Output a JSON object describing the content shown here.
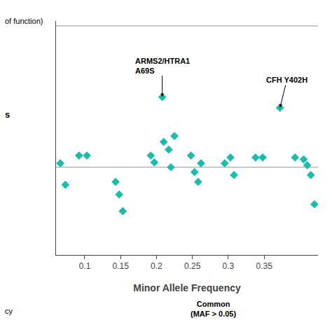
{
  "chart_data": {
    "type": "scatter",
    "xlabel": "Minor Allele Frequency",
    "x": [
      0.066,
      0.073,
      0.092,
      0.103,
      0.143,
      0.148,
      0.153,
      0.192,
      0.197,
      0.208,
      0.21,
      0.217,
      0.22,
      0.225,
      0.248,
      0.253,
      0.258,
      0.262,
      0.295,
      0.303,
      0.308,
      0.338,
      0.348,
      0.372,
      0.393,
      0.405,
      0.41,
      0.415,
      0.42
    ],
    "values": [
      0.04,
      -0.18,
      0.12,
      0.12,
      -0.15,
      -0.28,
      -0.45,
      0.12,
      0.05,
      0.72,
      0.26,
      0.18,
      0.0,
      0.32,
      0.12,
      -0.05,
      -0.15,
      0.04,
      0.04,
      0.1,
      -0.08,
      0.1,
      0.1,
      0.61,
      0.1,
      0.08,
      0.02,
      -0.08,
      -0.38
    ],
    "color": "#1ABCB0",
    "marker": "diamond",
    "xlim": [
      0.06,
      0.425
    ],
    "ylim": [
      -0.9,
      1.5
    ],
    "xticks": [
      0.1,
      0.15,
      0.2,
      0.25,
      0.3,
      0.35
    ],
    "tick_labels": "x",
    "grid": false,
    "hlines": [
      {
        "y": 0.0,
        "color": "#999999"
      },
      {
        "y": 1.45,
        "color": "#999999"
      }
    ],
    "annotations": [
      {
        "text": "ARMS2/HTRA1\nA69S",
        "x": 0.208,
        "y": 0.72
      },
      {
        "text": "CFH Y402H",
        "x": 0.372,
        "y": 0.61
      }
    ],
    "texts": [
      "of function)",
      "s",
      "cy",
      "Common\n(MAF > 0.05)"
    ]
  }
}
